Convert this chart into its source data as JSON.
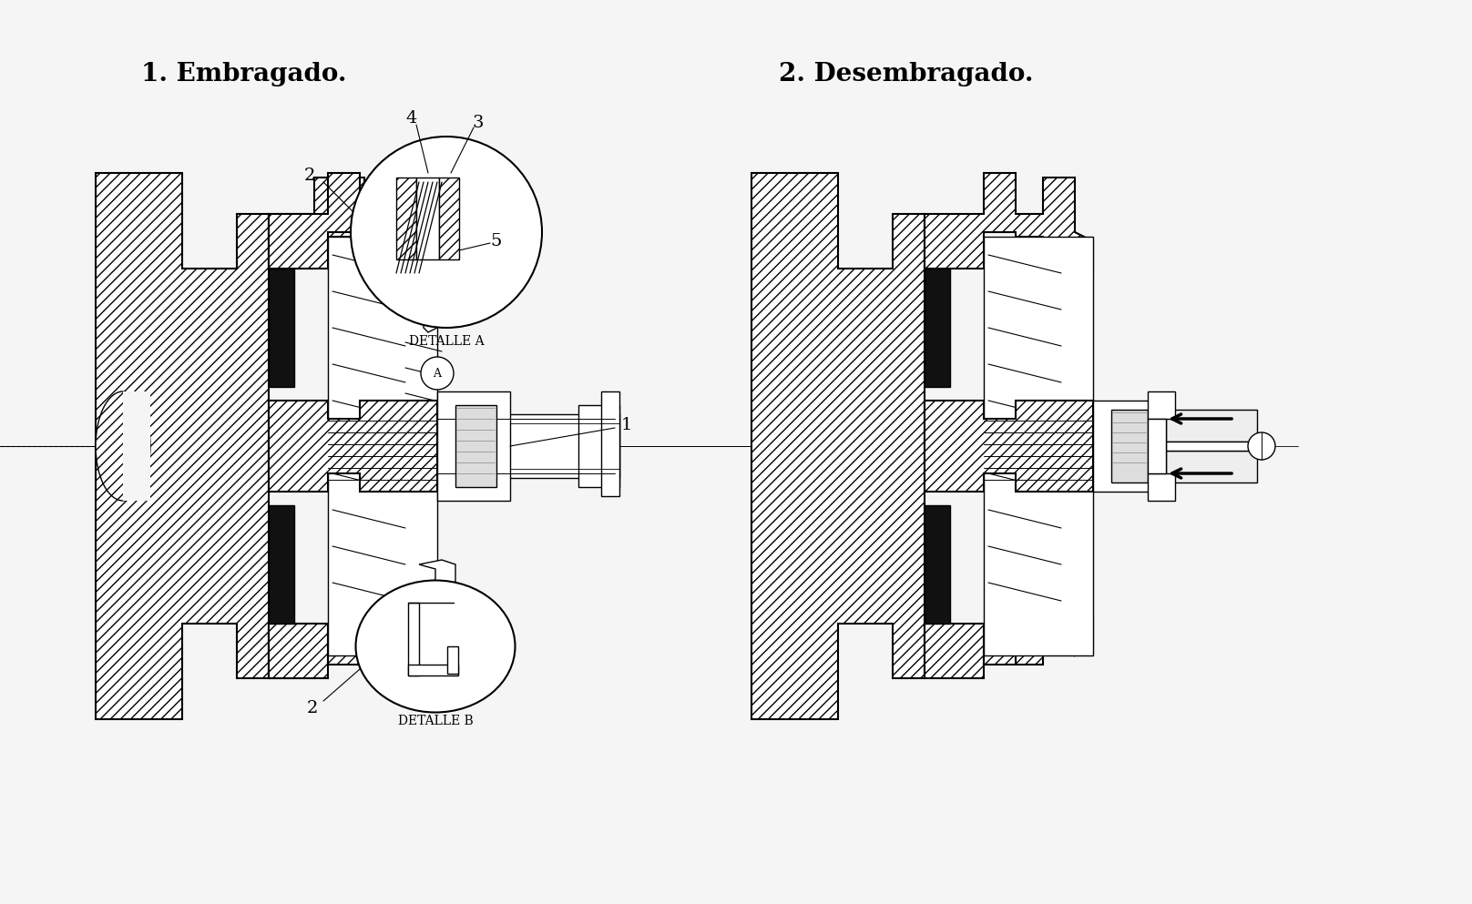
{
  "title1": "1. Embragado.",
  "title2": "2. Desembragado.",
  "bg_color": "#f5f5f5",
  "label_detalle_a": "DETALLE A",
  "label_detalle_b": "DETALLE B",
  "font_size_title": 20,
  "font_size_label": 14,
  "font_size_small": 11,
  "line_color": "#000000"
}
